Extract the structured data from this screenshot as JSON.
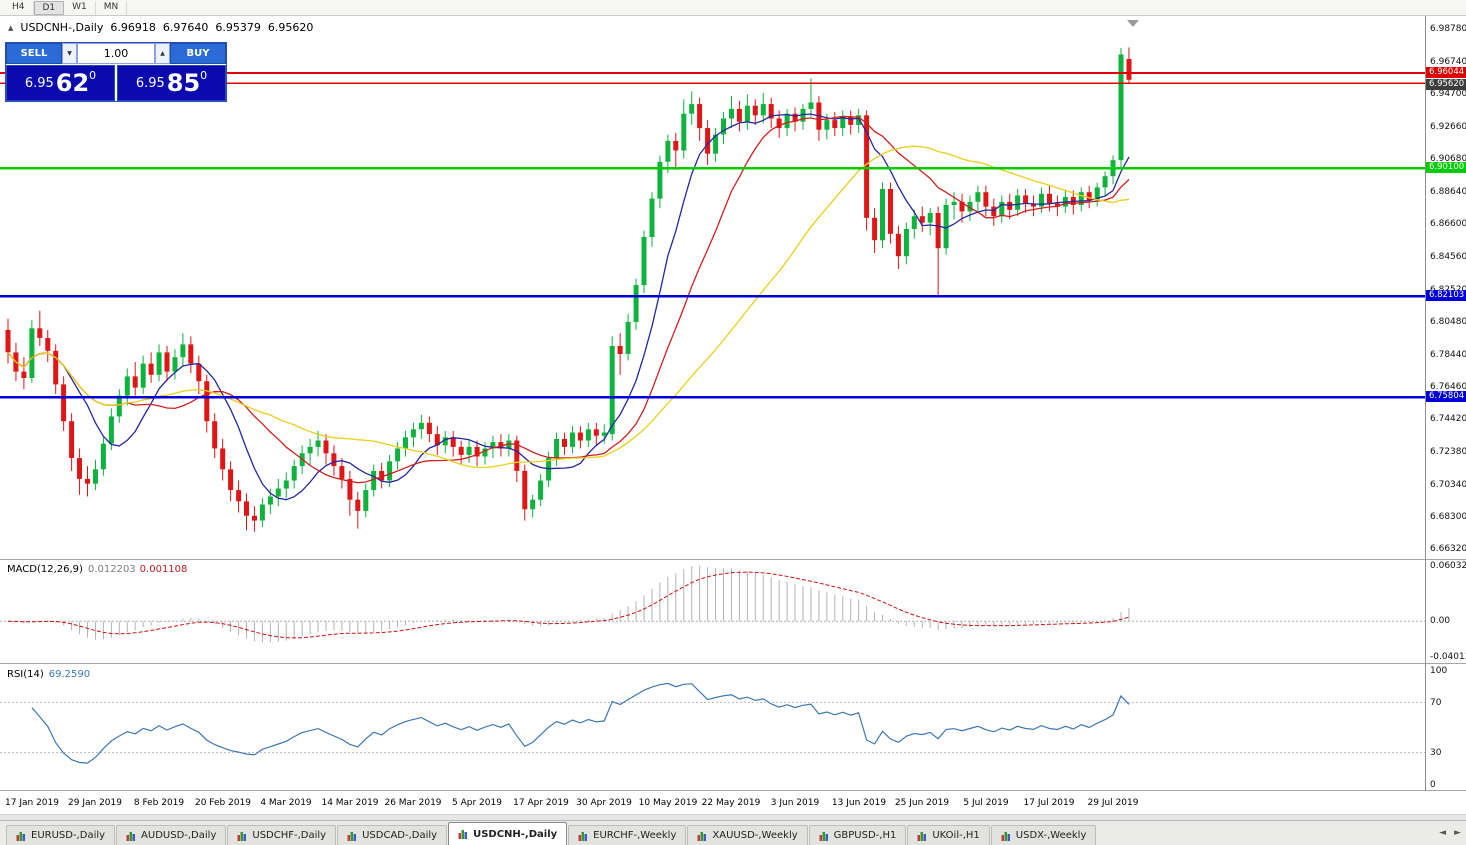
{
  "toolbar": {
    "timeframes": [
      {
        "label": "H4",
        "active": false
      },
      {
        "label": "D1",
        "active": true
      },
      {
        "label": "W1",
        "active": false
      },
      {
        "label": "MN",
        "active": false
      }
    ]
  },
  "chart": {
    "symbol": "USDCNH-,Daily",
    "marker_icon": "▲",
    "ohlc": {
      "open": "6.96918",
      "high": "6.97640",
      "low": "6.95379",
      "close": "6.95620"
    }
  },
  "trade": {
    "sell_label": "SELL",
    "buy_label": "BUY",
    "volume": "1.00",
    "volume_down_icon": "▼",
    "volume_up_icon": "▲",
    "sell_price": {
      "base": "6.95",
      "pips": "62",
      "point": "0"
    },
    "buy_price": {
      "base": "6.95",
      "pips": "85",
      "point": "0"
    }
  },
  "price_axis": {
    "labels": [
      "6.98780",
      "6.96740",
      "6.94700",
      "6.92660",
      "6.90680",
      "6.88640",
      "6.86600",
      "6.84560",
      "6.82520",
      "6.80480",
      "6.78440",
      "6.76460",
      "6.74420",
      "6.72380",
      "6.70340",
      "6.68300",
      "6.66320"
    ],
    "bid_tag": {
      "label": "6.95620",
      "value": 6.9562,
      "bg": "#3d3d3d"
    }
  },
  "levels": [
    {
      "label": "6.96044",
      "value": 6.96044,
      "color": "#dd0000",
      "width": 2,
      "tag": true
    },
    {
      "label": "",
      "value": 6.954,
      "color": "#dd0000",
      "width": 1.5,
      "tag": false
    },
    {
      "label": "6.90100",
      "value": 6.901,
      "color": "#00cc00",
      "width": 2.5,
      "tag": true
    },
    {
      "label": "6.82103",
      "value": 6.82103,
      "color": "#0000d6",
      "width": 2.5,
      "tag": true
    },
    {
      "label": "6.75804",
      "value": 6.75804,
      "color": "#0000d6",
      "width": 2.5,
      "tag": true
    }
  ],
  "chart_data": {
    "type": "candlestick",
    "symbol": "USDCNH",
    "timeframe": "Daily",
    "y_range": [
      6.657,
      6.996
    ],
    "up_color": "#0db33c",
    "down_color": "#e01515",
    "x_labels": [
      "17 Jan 2019",
      "29 Jan 2019",
      "8 Feb 2019",
      "20 Feb 2019",
      "4 Mar 2019",
      "14 Mar 2019",
      "26 Mar 2019",
      "5 Apr 2019",
      "17 Apr 2019",
      "30 Apr 2019",
      "10 May 2019",
      "22 May 2019",
      "3 Jun 2019",
      "13 Jun 2019",
      "25 Jun 2019",
      "5 Jul 2019",
      "17 Jul 2019",
      "29 Jul 2019"
    ],
    "first_label_index": 3,
    "label_step": 8,
    "moving_averages": [
      {
        "period": 8,
        "color": "#26269e"
      },
      {
        "period": 16,
        "color": "#cf2020"
      },
      {
        "period": 34,
        "color": "#e9cf1a"
      }
    ],
    "candles": [
      [
        6.8,
        6.807,
        6.779,
        6.786
      ],
      [
        6.786,
        6.792,
        6.768,
        6.774
      ],
      [
        6.774,
        6.783,
        6.763,
        6.77
      ],
      [
        6.77,
        6.806,
        6.767,
        6.801
      ],
      [
        6.801,
        6.812,
        6.79,
        6.795
      ],
      [
        6.795,
        6.8,
        6.78,
        6.787
      ],
      [
        6.787,
        6.791,
        6.76,
        6.766
      ],
      [
        6.766,
        6.771,
        6.737,
        6.743
      ],
      [
        6.743,
        6.748,
        6.712,
        6.72
      ],
      [
        6.72,
        6.726,
        6.697,
        6.707
      ],
      [
        6.707,
        6.715,
        6.696,
        6.704
      ],
      [
        6.704,
        6.719,
        6.7,
        6.713
      ],
      [
        6.713,
        6.733,
        6.709,
        6.729
      ],
      [
        6.729,
        6.751,
        6.725,
        6.746
      ],
      [
        6.746,
        6.763,
        6.742,
        6.759
      ],
      [
        6.759,
        6.776,
        6.753,
        6.771
      ],
      [
        6.771,
        6.78,
        6.759,
        6.764
      ],
      [
        6.764,
        6.784,
        6.76,
        6.779
      ],
      [
        6.779,
        6.786,
        6.767,
        6.772
      ],
      [
        6.772,
        6.791,
        6.768,
        6.786
      ],
      [
        6.786,
        6.79,
        6.768,
        6.774
      ],
      [
        6.774,
        6.788,
        6.769,
        6.783
      ],
      [
        6.783,
        6.798,
        6.777,
        6.791
      ],
      [
        6.791,
        6.796,
        6.773,
        6.779
      ],
      [
        6.779,
        6.784,
        6.76,
        6.768
      ],
      [
        6.768,
        6.772,
        6.736,
        6.743
      ],
      [
        6.743,
        6.748,
        6.72,
        6.726
      ],
      [
        6.726,
        6.732,
        6.706,
        6.713
      ],
      [
        6.713,
        6.718,
        6.693,
        6.7
      ],
      [
        6.7,
        6.706,
        6.686,
        6.693
      ],
      [
        6.693,
        6.698,
        6.675,
        6.684
      ],
      [
        6.684,
        6.69,
        6.674,
        6.681
      ],
      [
        6.681,
        6.695,
        6.677,
        6.691
      ],
      [
        6.691,
        6.701,
        6.685,
        6.696
      ],
      [
        6.696,
        6.707,
        6.69,
        6.701
      ],
      [
        6.701,
        6.711,
        6.695,
        6.706
      ],
      [
        6.706,
        6.719,
        6.701,
        6.715
      ],
      [
        6.715,
        6.728,
        6.71,
        6.723
      ],
      [
        6.723,
        6.732,
        6.716,
        6.727
      ],
      [
        6.727,
        6.737,
        6.721,
        6.731
      ],
      [
        6.731,
        6.735,
        6.716,
        6.723
      ],
      [
        6.723,
        6.728,
        6.709,
        6.715
      ],
      [
        6.715,
        6.72,
        6.701,
        6.707
      ],
      [
        6.707,
        6.712,
        6.684,
        6.694
      ],
      [
        6.694,
        6.699,
        6.676,
        6.687
      ],
      [
        6.687,
        6.704,
        6.683,
        6.7
      ],
      [
        6.7,
        6.716,
        6.696,
        6.712
      ],
      [
        6.712,
        6.717,
        6.701,
        6.706
      ],
      [
        6.706,
        6.722,
        6.702,
        6.718
      ],
      [
        6.718,
        6.73,
        6.713,
        6.726
      ],
      [
        6.726,
        6.737,
        6.721,
        6.733
      ],
      [
        6.733,
        6.742,
        6.727,
        6.738
      ],
      [
        6.738,
        6.747,
        6.732,
        6.742
      ],
      [
        6.742,
        6.746,
        6.73,
        6.735
      ],
      [
        6.735,
        6.74,
        6.722,
        6.728
      ],
      [
        6.728,
        6.737,
        6.723,
        6.733
      ],
      [
        6.733,
        6.737,
        6.721,
        6.727
      ],
      [
        6.727,
        6.731,
        6.716,
        6.722
      ],
      [
        6.722,
        6.731,
        6.717,
        6.727
      ],
      [
        6.727,
        6.731,
        6.715,
        6.721
      ],
      [
        6.721,
        6.73,
        6.716,
        6.726
      ],
      [
        6.726,
        6.734,
        6.72,
        6.73
      ],
      [
        6.73,
        6.735,
        6.721,
        6.726
      ],
      [
        6.726,
        6.735,
        6.721,
        6.731
      ],
      [
        6.731,
        6.734,
        6.705,
        6.712
      ],
      [
        6.712,
        6.716,
        6.681,
        6.688
      ],
      [
        6.688,
        6.697,
        6.683,
        6.694
      ],
      [
        6.694,
        6.71,
        6.69,
        6.706
      ],
      [
        6.706,
        6.724,
        6.702,
        6.72
      ],
      [
        6.72,
        6.736,
        6.715,
        6.732
      ],
      [
        6.732,
        6.736,
        6.722,
        6.727
      ],
      [
        6.727,
        6.74,
        6.723,
        6.736
      ],
      [
        6.736,
        6.74,
        6.726,
        6.731
      ],
      [
        6.731,
        6.742,
        6.727,
        6.738
      ],
      [
        6.738,
        6.742,
        6.728,
        6.734
      ],
      [
        6.734,
        6.741,
        6.729,
        6.736
      ],
      [
        6.735,
        6.796,
        6.731,
        6.79
      ],
      [
        6.79,
        6.798,
        6.772,
        6.785
      ],
      [
        6.785,
        6.81,
        6.781,
        6.805
      ],
      [
        6.805,
        6.832,
        6.8,
        6.828
      ],
      [
        6.828,
        6.862,
        6.823,
        6.858
      ],
      [
        6.858,
        6.886,
        6.852,
        6.882
      ],
      [
        6.882,
        6.909,
        6.876,
        6.905
      ],
      [
        6.905,
        6.922,
        6.898,
        6.918
      ],
      [
        6.918,
        6.923,
        6.9,
        6.912
      ],
      [
        6.912,
        6.944,
        6.907,
        6.935
      ],
      [
        6.935,
        6.949,
        6.928,
        6.941
      ],
      [
        6.941,
        6.945,
        6.918,
        6.926
      ],
      [
        6.926,
        6.931,
        6.903,
        6.91
      ],
      [
        6.91,
        6.926,
        6.905,
        6.922
      ],
      [
        6.922,
        6.936,
        6.916,
        6.932
      ],
      [
        6.932,
        6.946,
        6.926,
        6.938
      ],
      [
        6.938,
        6.943,
        6.924,
        6.93
      ],
      [
        6.93,
        6.947,
        6.925,
        6.94
      ],
      [
        6.94,
        6.944,
        6.928,
        6.934
      ],
      [
        6.934,
        6.948,
        6.929,
        6.941
      ],
      [
        6.941,
        6.945,
        6.926,
        6.932
      ],
      [
        6.932,
        6.937,
        6.92,
        6.926
      ],
      [
        6.926,
        6.938,
        6.921,
        6.935
      ],
      [
        6.935,
        6.939,
        6.924,
        6.93
      ],
      [
        6.93,
        6.941,
        6.925,
        6.938
      ],
      [
        6.938,
        6.957,
        6.933,
        6.942
      ],
      [
        6.942,
        6.946,
        6.918,
        6.925
      ],
      [
        6.925,
        6.935,
        6.919,
        6.931
      ],
      [
        6.931,
        6.936,
        6.921,
        6.926
      ],
      [
        6.926,
        6.937,
        6.921,
        6.933
      ],
      [
        6.933,
        6.937,
        6.922,
        6.928
      ],
      [
        6.928,
        6.938,
        6.923,
        6.934
      ],
      [
        6.934,
        6.937,
        6.862,
        6.87
      ],
      [
        6.87,
        6.876,
        6.848,
        6.856
      ],
      [
        6.856,
        6.892,
        6.851,
        6.888
      ],
      [
        6.888,
        6.892,
        6.854,
        6.86
      ],
      [
        6.86,
        6.865,
        6.838,
        6.846
      ],
      [
        6.846,
        6.867,
        6.841,
        6.863
      ],
      [
        6.863,
        6.875,
        6.857,
        6.871
      ],
      [
        6.871,
        6.877,
        6.861,
        6.867
      ],
      [
        6.867,
        6.876,
        6.859,
        6.873
      ],
      [
        6.873,
        6.877,
        6.821,
        6.851
      ],
      [
        6.851,
        6.882,
        6.847,
        6.878
      ],
      [
        6.878,
        6.886,
        6.869,
        6.88
      ],
      [
        6.88,
        6.885,
        6.867,
        6.874
      ],
      [
        6.874,
        6.884,
        6.868,
        6.88
      ],
      [
        6.88,
        6.89,
        6.874,
        6.886
      ],
      [
        6.886,
        6.89,
        6.871,
        6.877
      ],
      [
        6.877,
        6.882,
        6.865,
        6.871
      ],
      [
        6.871,
        6.884,
        6.867,
        6.88
      ],
      [
        6.88,
        6.885,
        6.869,
        6.875
      ],
      [
        6.875,
        6.888,
        6.871,
        6.884
      ],
      [
        6.884,
        6.888,
        6.873,
        6.879
      ],
      [
        6.879,
        6.884,
        6.871,
        6.877
      ],
      [
        6.877,
        6.889,
        6.873,
        6.885
      ],
      [
        6.885,
        6.89,
        6.874,
        6.879
      ],
      [
        6.879,
        6.884,
        6.871,
        6.877
      ],
      [
        6.877,
        6.887,
        6.873,
        6.883
      ],
      [
        6.883,
        6.887,
        6.872,
        6.878
      ],
      [
        6.878,
        6.889,
        6.874,
        6.886
      ],
      [
        6.886,
        6.89,
        6.876,
        6.881
      ],
      [
        6.881,
        6.892,
        6.877,
        6.889
      ],
      [
        6.889,
        6.899,
        6.884,
        6.896
      ],
      [
        6.896,
        6.909,
        6.891,
        6.906
      ],
      [
        6.906,
        6.976,
        6.901,
        6.972
      ],
      [
        6.96918,
        6.9764,
        6.95379,
        6.9562
      ]
    ]
  },
  "macd": {
    "label": "MACD(12,26,9)",
    "main_value": "0.012203",
    "signal_value": "0.001108",
    "fast": 12,
    "slow": 26,
    "signal": 9,
    "axis_max": "0.060329",
    "axis_zero": "0.00",
    "axis_min": "-0.040135",
    "hist_color": "#b2b2b2",
    "signal_color": "#cc1111"
  },
  "rsi": {
    "label": "RSI(14)",
    "value": "69.2590",
    "period": 14,
    "axis": [
      "100",
      "70",
      "30",
      "0"
    ],
    "upper": 70,
    "lower": 30,
    "line_color": "#3c78b4"
  },
  "tabs": {
    "items": [
      {
        "label": "EURUSD-,Daily",
        "active": false
      },
      {
        "label": "AUDUSD-,Daily",
        "active": false
      },
      {
        "label": "USDCHF-,Daily",
        "active": false
      },
      {
        "label": "USDCAD-,Daily",
        "active": false
      },
      {
        "label": "USDCNH-,Daily",
        "active": true
      },
      {
        "label": "EURCHF-,Weekly",
        "active": false
      },
      {
        "label": "XAUUSD-,Weekly",
        "active": false
      },
      {
        "label": "GBPUSD-,H1",
        "active": false
      },
      {
        "label": "UKOil-,H1",
        "active": false
      },
      {
        "label": "USDX-,Weekly",
        "active": false
      }
    ],
    "nav_left": "◄",
    "nav_right": "►"
  }
}
